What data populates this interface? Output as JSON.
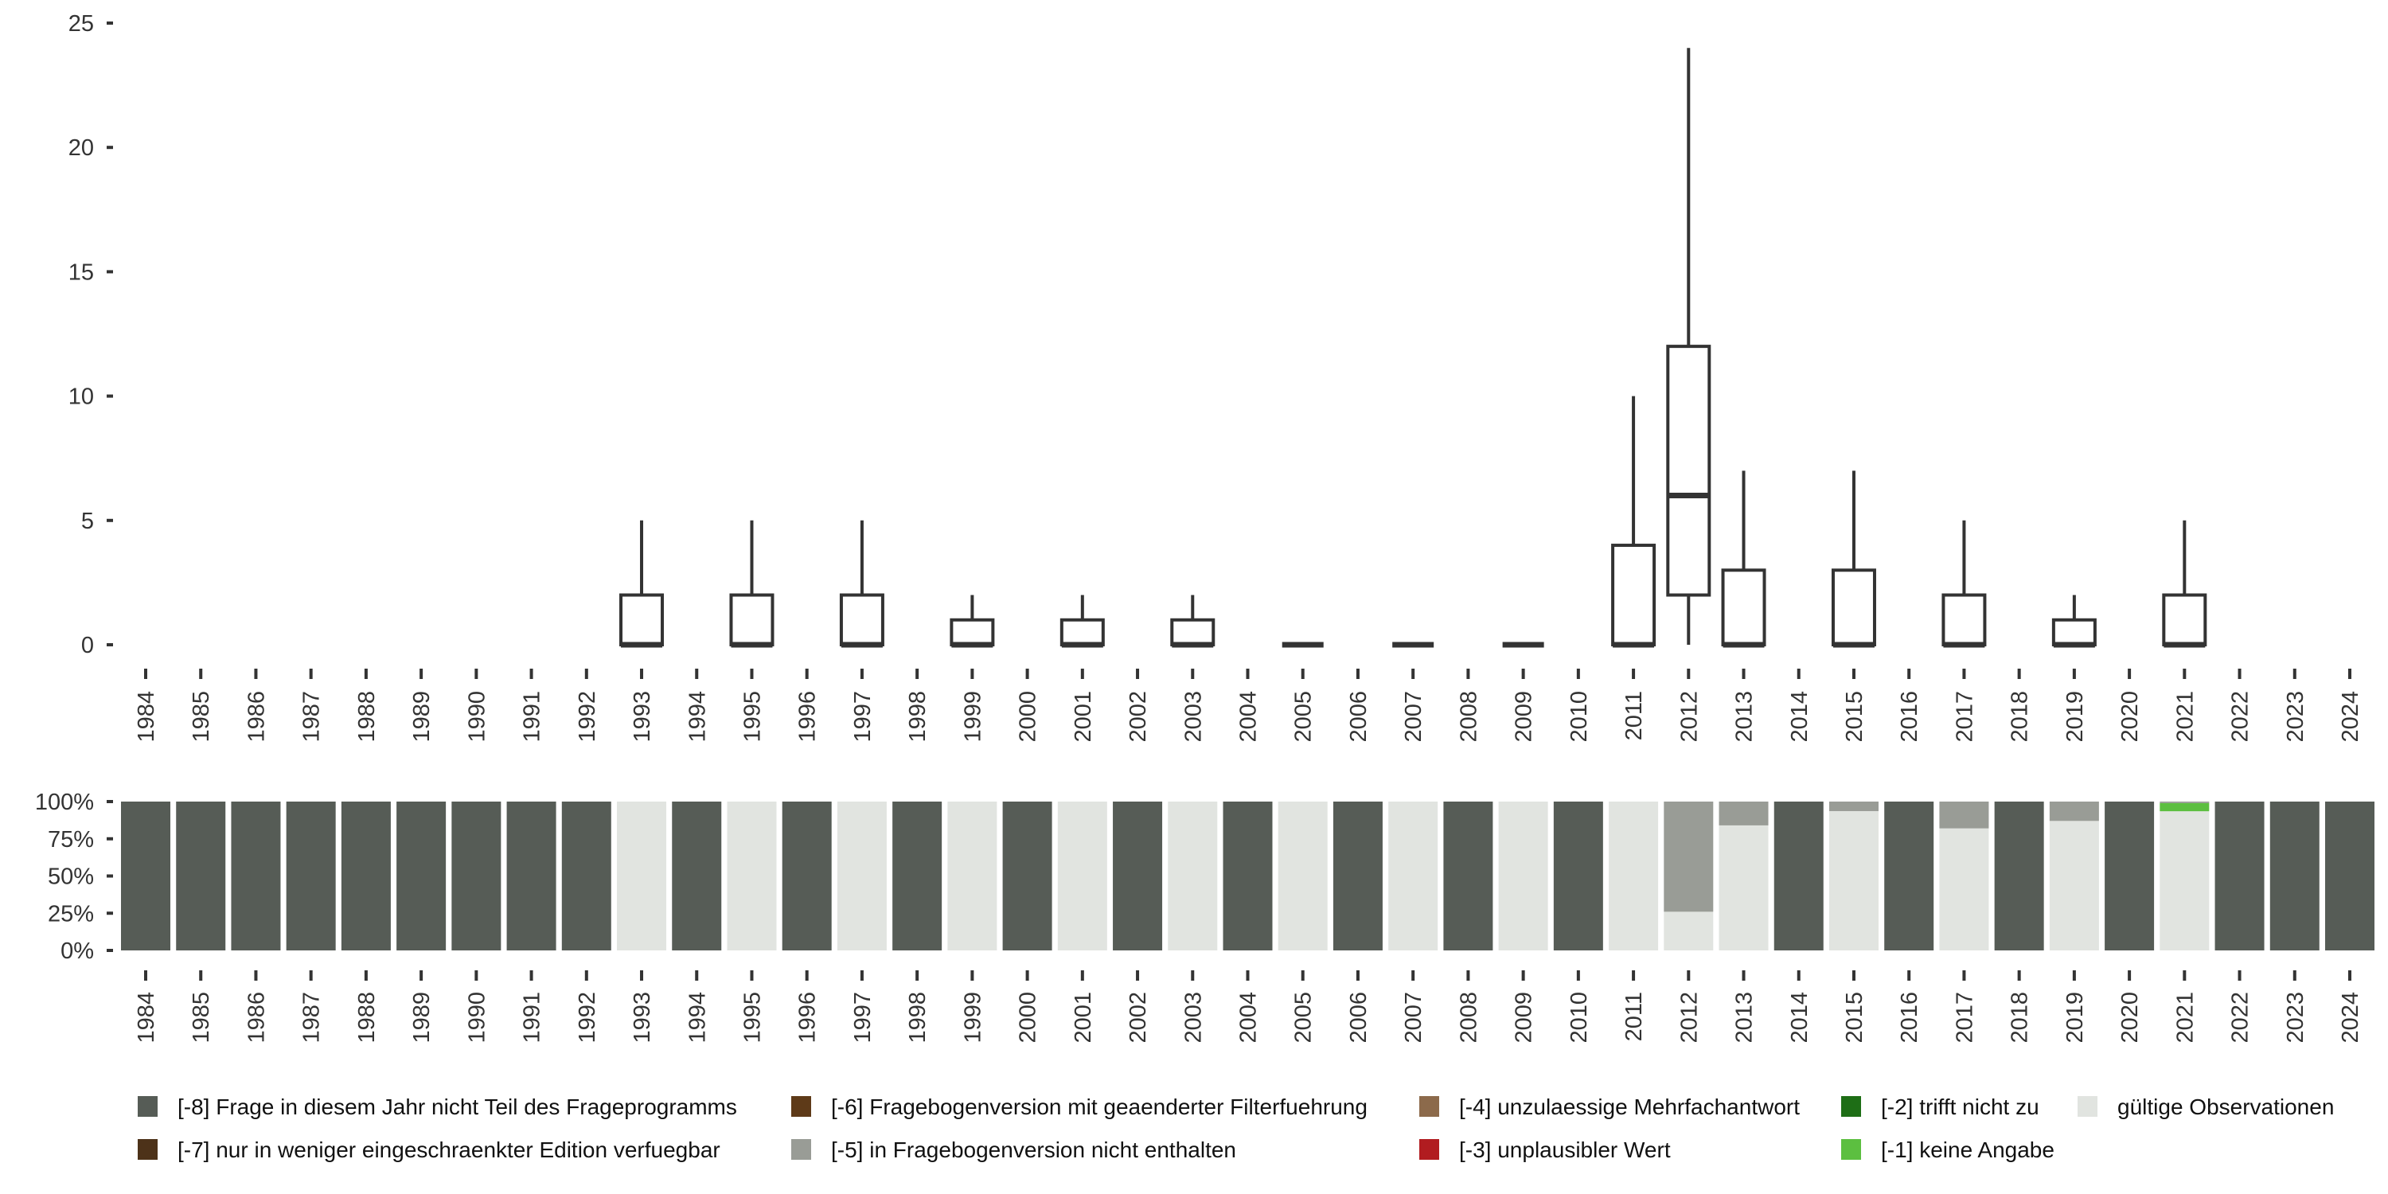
{
  "chart_data": [
    {
      "type": "box",
      "title": "",
      "xlabel": "",
      "ylabel": "",
      "ylim": [
        0,
        25
      ],
      "yticks": [
        "0",
        "5",
        "10",
        "15",
        "20",
        "25"
      ],
      "ytick_values": [
        0,
        5,
        10,
        15,
        20,
        25
      ],
      "categories": [
        "1984",
        "1985",
        "1986",
        "1987",
        "1988",
        "1989",
        "1990",
        "1991",
        "1992",
        "1993",
        "1994",
        "1995",
        "1996",
        "1997",
        "1998",
        "1999",
        "2000",
        "2001",
        "2002",
        "2003",
        "2004",
        "2005",
        "2006",
        "2007",
        "2008",
        "2009",
        "2010",
        "2011",
        "2012",
        "2013",
        "2014",
        "2015",
        "2016",
        "2017",
        "2018",
        "2019",
        "2020",
        "2021",
        "2022",
        "2023",
        "2024"
      ],
      "boxes": [
        {
          "year": "1993",
          "min": 0,
          "q1": 0,
          "median": 0,
          "q3": 2,
          "max": 5
        },
        {
          "year": "1995",
          "min": 0,
          "q1": 0,
          "median": 0,
          "q3": 2,
          "max": 5
        },
        {
          "year": "1997",
          "min": 0,
          "q1": 0,
          "median": 0,
          "q3": 2,
          "max": 5
        },
        {
          "year": "1999",
          "min": 0,
          "q1": 0,
          "median": 0,
          "q3": 1,
          "max": 2
        },
        {
          "year": "2001",
          "min": 0,
          "q1": 0,
          "median": 0,
          "q3": 1,
          "max": 2
        },
        {
          "year": "2003",
          "min": 0,
          "q1": 0,
          "median": 0,
          "q3": 1,
          "max": 2
        },
        {
          "year": "2005",
          "min": 0,
          "q1": 0,
          "median": 0,
          "q3": 0,
          "max": 0
        },
        {
          "year": "2007",
          "min": 0,
          "q1": 0,
          "median": 0,
          "q3": 0,
          "max": 0
        },
        {
          "year": "2009",
          "min": 0,
          "q1": 0,
          "median": 0,
          "q3": 0,
          "max": 0
        },
        {
          "year": "2011",
          "min": 0,
          "q1": 0,
          "median": 0,
          "q3": 4,
          "max": 10
        },
        {
          "year": "2012",
          "min": 0,
          "q1": 2,
          "median": 6,
          "q3": 12,
          "max": 24
        },
        {
          "year": "2013",
          "min": 0,
          "q1": 0,
          "median": 0,
          "q3": 3,
          "max": 7
        },
        {
          "year": "2015",
          "min": 0,
          "q1": 0,
          "median": 0,
          "q3": 3,
          "max": 7
        },
        {
          "year": "2017",
          "min": 0,
          "q1": 0,
          "median": 0,
          "q3": 2,
          "max": 5
        },
        {
          "year": "2019",
          "min": 0,
          "q1": 0,
          "median": 0,
          "q3": 1,
          "max": 2
        },
        {
          "year": "2021",
          "min": 0,
          "q1": 0,
          "median": 0,
          "q3": 2,
          "max": 5
        }
      ]
    },
    {
      "type": "bar",
      "stacked": true,
      "title": "",
      "xlabel": "",
      "ylabel": "",
      "ylim": [
        0,
        1
      ],
      "yticks": [
        "0%",
        "25%",
        "50%",
        "75%",
        "100%"
      ],
      "ytick_values": [
        0,
        0.25,
        0.5,
        0.75,
        1
      ],
      "categories": [
        "1984",
        "1985",
        "1986",
        "1987",
        "1988",
        "1989",
        "1990",
        "1991",
        "1992",
        "1993",
        "1994",
        "1995",
        "1996",
        "1997",
        "1998",
        "1999",
        "2000",
        "2001",
        "2002",
        "2003",
        "2004",
        "2005",
        "2006",
        "2007",
        "2008",
        "2009",
        "2010",
        "2011",
        "2012",
        "2013",
        "2014",
        "2015",
        "2016",
        "2017",
        "2018",
        "2019",
        "2020",
        "2021",
        "2022",
        "2023",
        "2024"
      ],
      "series_order_bottom_to_top": [
        "valid",
        "-1",
        "-2",
        "-3",
        "-4",
        "-5",
        "-6",
        "-7",
        "-8"
      ],
      "shares": {
        "1984": {
          "-8": 1
        },
        "1985": {
          "-8": 1
        },
        "1986": {
          "-8": 1
        },
        "1987": {
          "-8": 1
        },
        "1988": {
          "-8": 1
        },
        "1989": {
          "-8": 1
        },
        "1990": {
          "-8": 1
        },
        "1991": {
          "-8": 1
        },
        "1992": {
          "-8": 1
        },
        "1993": {
          "valid": 1
        },
        "1994": {
          "-8": 1
        },
        "1995": {
          "valid": 1
        },
        "1996": {
          "-8": 1
        },
        "1997": {
          "valid": 1
        },
        "1998": {
          "-8": 1
        },
        "1999": {
          "valid": 1
        },
        "2000": {
          "-8": 1
        },
        "2001": {
          "valid": 1
        },
        "2002": {
          "-8": 1
        },
        "2003": {
          "valid": 1
        },
        "2004": {
          "-8": 1
        },
        "2005": {
          "valid": 1
        },
        "2006": {
          "-8": 1
        },
        "2007": {
          "valid": 1
        },
        "2008": {
          "-8": 1
        },
        "2009": {
          "valid": 1
        },
        "2010": {
          "-8": 1
        },
        "2011": {
          "valid": 1
        },
        "2012": {
          "valid": 0.26,
          "-5": 0.74
        },
        "2013": {
          "valid": 0.84,
          "-5": 0.16
        },
        "2014": {
          "-8": 1
        },
        "2015": {
          "valid": 0.936,
          "-5": 0.064
        },
        "2016": {
          "-8": 1
        },
        "2017": {
          "valid": 0.82,
          "-5": 0.18
        },
        "2018": {
          "-8": 1
        },
        "2019": {
          "valid": 0.87,
          "-5": 0.13
        },
        "2020": {
          "-8": 1
        },
        "2021": {
          "valid": 0.935,
          "-1": 0.055,
          "-5": 0.01
        },
        "2022": {
          "-8": 1
        },
        "2023": {
          "-8": 1
        },
        "2024": {
          "-8": 1
        }
      }
    }
  ],
  "legend": {
    "placement": "bottom",
    "items": [
      {
        "key": "-8",
        "label": "[-8] Frage in diesem Jahr nicht Teil des Frageprogramms",
        "color": "#565c56"
      },
      {
        "key": "-7",
        "label": "[-7] nur in weniger eingeschraenkter Edition verfuegbar",
        "color": "#4d3219"
      },
      {
        "key": "-6",
        "label": "[-6] Fragebogenversion mit geaenderter Filterfuehrung",
        "color": "#5e3a18"
      },
      {
        "key": "-5",
        "label": "[-5] in Fragebogenversion nicht enthalten",
        "color": "#999c96"
      },
      {
        "key": "-4",
        "label": "[-4] unzulaessige Mehrfachantwort",
        "color": "#8c6a4b"
      },
      {
        "key": "-3",
        "label": "[-3] unplausibler Wert",
        "color": "#b11c20"
      },
      {
        "key": "-2",
        "label": "[-2] trifft nicht zu",
        "color": "#1e6e16"
      },
      {
        "key": "-1",
        "label": "[-1] keine Angabe",
        "color": "#5cbf40"
      },
      {
        "key": "valid",
        "label": "gültige Observationen",
        "color": "#e1e4e0"
      }
    ]
  },
  "colors": {
    "box_stroke": "#333333",
    "axis_text": "#333333"
  }
}
